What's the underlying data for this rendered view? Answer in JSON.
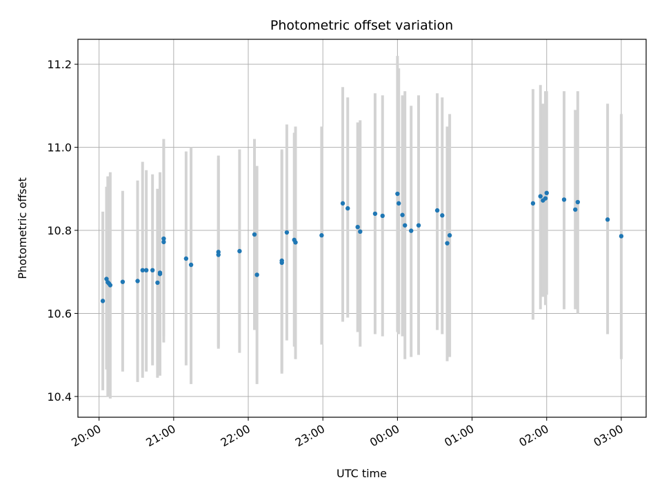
{
  "chart_data": {
    "type": "scatter",
    "title": "Photometric offset variation",
    "xlabel": "UTC time",
    "ylabel": "Photometric offset",
    "x_axis": {
      "kind": "time",
      "start": "20:00",
      "end": "03:00",
      "xlim": [
        "19:43",
        "03:20"
      ],
      "ticks": [
        "20:00",
        "21:00",
        "22:00",
        "23:00",
        "00:00",
        "01:00",
        "02:00",
        "03:00"
      ],
      "tick_rotation": 30
    },
    "ylim": [
      10.35,
      11.26
    ],
    "yticks": [
      "10.4",
      "10.6",
      "10.8",
      "11.0",
      "11.2"
    ],
    "grid": true,
    "colors": {
      "point": "#1f77b4",
      "errorbar": "#d3d3d3",
      "grid": "#b0b0b0",
      "axes": "#000000"
    },
    "points": [
      {
        "t": "20:03",
        "y": 10.63,
        "lo": 10.415,
        "hi": 10.845
      },
      {
        "t": "20:06",
        "y": 10.683,
        "lo": 10.465,
        "hi": 10.905
      },
      {
        "t": "20:07",
        "y": 10.675,
        "lo": 10.4,
        "hi": 10.93
      },
      {
        "t": "20:08",
        "y": 10.672,
        "lo": 10.46,
        "hi": 10.93
      },
      {
        "t": "20:09",
        "y": 10.668,
        "lo": 10.395,
        "hi": 10.94
      },
      {
        "t": "20:19",
        "y": 10.676,
        "lo": 10.46,
        "hi": 10.895
      },
      {
        "t": "20:31",
        "y": 10.678,
        "lo": 10.435,
        "hi": 10.92
      },
      {
        "t": "20:35",
        "y": 10.704,
        "lo": 10.445,
        "hi": 10.965
      },
      {
        "t": "20:38",
        "y": 10.704,
        "lo": 10.46,
        "hi": 10.945
      },
      {
        "t": "20:43",
        "y": 10.704,
        "lo": 10.475,
        "hi": 10.935
      },
      {
        "t": "20:47",
        "y": 10.674,
        "lo": 10.445,
        "hi": 10.9
      },
      {
        "t": "20:49",
        "y": 10.698,
        "lo": 10.47,
        "hi": 10.925
      },
      {
        "t": "20:49",
        "y": 10.695,
        "lo": 10.45,
        "hi": 10.94
      },
      {
        "t": "20:52",
        "y": 10.772,
        "lo": 10.53,
        "hi": 11.01
      },
      {
        "t": "20:52",
        "y": 10.78,
        "lo": 10.545,
        "hi": 11.02
      },
      {
        "t": "21:10",
        "y": 10.732,
        "lo": 10.475,
        "hi": 10.99
      },
      {
        "t": "21:14",
        "y": 10.717,
        "lo": 10.43,
        "hi": 11.0
      },
      {
        "t": "21:36",
        "y": 10.748,
        "lo": 10.515,
        "hi": 10.98
      },
      {
        "t": "21:36",
        "y": 10.741,
        "lo": 10.52,
        "hi": 10.97
      },
      {
        "t": "21:53",
        "y": 10.75,
        "lo": 10.505,
        "hi": 10.995
      },
      {
        "t": "22:05",
        "y": 10.79,
        "lo": 10.56,
        "hi": 11.02
      },
      {
        "t": "22:07",
        "y": 10.693,
        "lo": 10.43,
        "hi": 10.955
      },
      {
        "t": "22:27",
        "y": 10.722,
        "lo": 10.455,
        "hi": 10.99
      },
      {
        "t": "22:27",
        "y": 10.727,
        "lo": 10.46,
        "hi": 10.995
      },
      {
        "t": "22:31",
        "y": 10.795,
        "lo": 10.535,
        "hi": 11.055
      },
      {
        "t": "22:37",
        "y": 10.777,
        "lo": 10.52,
        "hi": 11.035
      },
      {
        "t": "22:38",
        "y": 10.771,
        "lo": 10.49,
        "hi": 11.05
      },
      {
        "t": "22:59",
        "y": 10.788,
        "lo": 10.525,
        "hi": 11.05
      },
      {
        "t": "23:16",
        "y": 10.865,
        "lo": 10.58,
        "hi": 11.145
      },
      {
        "t": "23:20",
        "y": 10.853,
        "lo": 10.59,
        "hi": 11.12
      },
      {
        "t": "23:28",
        "y": 10.808,
        "lo": 10.555,
        "hi": 11.06
      },
      {
        "t": "23:30",
        "y": 10.797,
        "lo": 10.52,
        "hi": 11.065
      },
      {
        "t": "23:42",
        "y": 10.84,
        "lo": 10.55,
        "hi": 11.13
      },
      {
        "t": "23:48",
        "y": 10.835,
        "lo": 10.545,
        "hi": 11.125
      },
      {
        "t": "00:00",
        "y": 10.888,
        "lo": 10.555,
        "hi": 11.22
      },
      {
        "t": "00:01",
        "y": 10.865,
        "lo": 10.55,
        "hi": 11.19
      },
      {
        "t": "00:04",
        "y": 10.837,
        "lo": 10.545,
        "hi": 11.125
      },
      {
        "t": "00:06",
        "y": 10.812,
        "lo": 10.49,
        "hi": 11.135
      },
      {
        "t": "00:11",
        "y": 10.799,
        "lo": 10.495,
        "hi": 11.1
      },
      {
        "t": "00:17",
        "y": 10.812,
        "lo": 10.5,
        "hi": 11.125
      },
      {
        "t": "00:32",
        "y": 10.848,
        "lo": 10.56,
        "hi": 11.13
      },
      {
        "t": "00:36",
        "y": 10.836,
        "lo": 10.55,
        "hi": 11.12
      },
      {
        "t": "00:40",
        "y": 10.769,
        "lo": 10.485,
        "hi": 11.05
      },
      {
        "t": "00:42",
        "y": 10.788,
        "lo": 10.495,
        "hi": 11.08
      },
      {
        "t": "01:49",
        "y": 10.865,
        "lo": 10.585,
        "hi": 11.14
      },
      {
        "t": "01:55",
        "y": 10.882,
        "lo": 10.61,
        "hi": 11.15
      },
      {
        "t": "01:57",
        "y": 10.872,
        "lo": 10.64,
        "hi": 11.105
      },
      {
        "t": "01:59",
        "y": 10.877,
        "lo": 10.62,
        "hi": 11.135
      },
      {
        "t": "02:00",
        "y": 10.89,
        "lo": 10.645,
        "hi": 11.135
      },
      {
        "t": "02:14",
        "y": 10.874,
        "lo": 10.61,
        "hi": 11.135
      },
      {
        "t": "02:23",
        "y": 10.85,
        "lo": 10.61,
        "hi": 11.09
      },
      {
        "t": "02:25",
        "y": 10.868,
        "lo": 10.6,
        "hi": 11.135
      },
      {
        "t": "02:49",
        "y": 10.826,
        "lo": 10.55,
        "hi": 11.105
      },
      {
        "t": "03:00",
        "y": 10.786,
        "lo": 10.49,
        "hi": 11.08
      }
    ]
  }
}
